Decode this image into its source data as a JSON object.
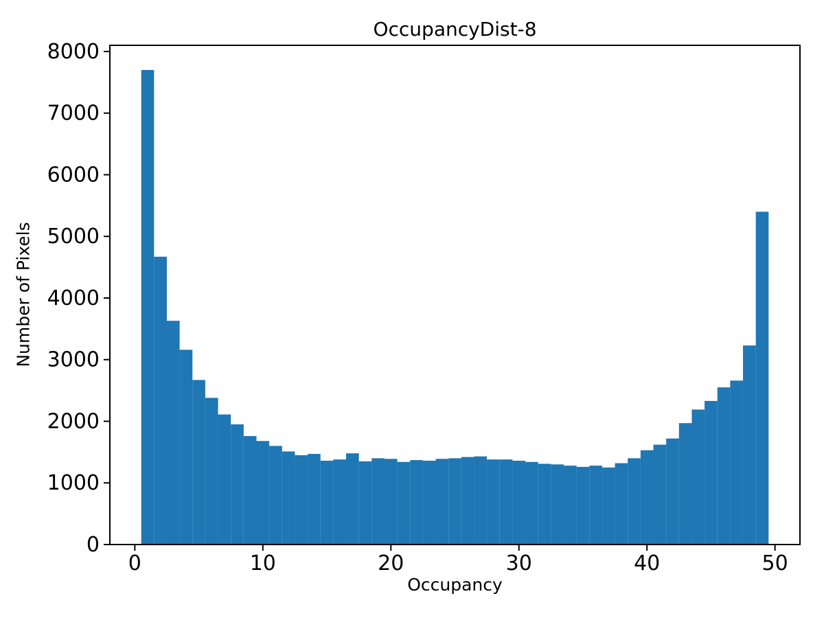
{
  "figure": {
    "background": "#ffffff"
  },
  "chart_data": {
    "type": "bar",
    "subtype": "histogram",
    "title": "OccupancyDist-8",
    "xlabel": "Occupancy",
    "ylabel": "Number of Pixels",
    "bar_color": "#1f77b4",
    "axis_color": "#000000",
    "grid": false,
    "legend": null,
    "bin_start": 0.5,
    "bin_width": 1,
    "bin_centers": [
      1,
      2,
      3,
      4,
      5,
      6,
      7,
      8,
      9,
      10,
      11,
      12,
      13,
      14,
      15,
      16,
      17,
      18,
      19,
      20,
      21,
      22,
      23,
      24,
      25,
      26,
      27,
      28,
      29,
      30,
      31,
      32,
      33,
      34,
      35,
      36,
      37,
      38,
      39,
      40,
      41,
      42,
      43,
      44,
      45,
      46,
      47,
      48,
      49
    ],
    "values": [
      7700,
      4670,
      3630,
      3160,
      2670,
      2380,
      2110,
      1950,
      1760,
      1680,
      1600,
      1510,
      1450,
      1470,
      1360,
      1380,
      1480,
      1350,
      1400,
      1390,
      1340,
      1370,
      1360,
      1390,
      1400,
      1420,
      1430,
      1380,
      1380,
      1360,
      1340,
      1310,
      1300,
      1280,
      1260,
      1280,
      1250,
      1320,
      1400,
      1530,
      1620,
      1720,
      1970,
      2190,
      2330,
      2550,
      2660,
      3230,
      5400
    ],
    "xticks": [
      0,
      10,
      20,
      30,
      40,
      50
    ],
    "yticks": [
      0,
      1000,
      2000,
      3000,
      4000,
      5000,
      6000,
      7000,
      8000
    ],
    "xlim": [
      -1.95,
      51.95
    ],
    "ylim": [
      0,
      8100
    ]
  }
}
